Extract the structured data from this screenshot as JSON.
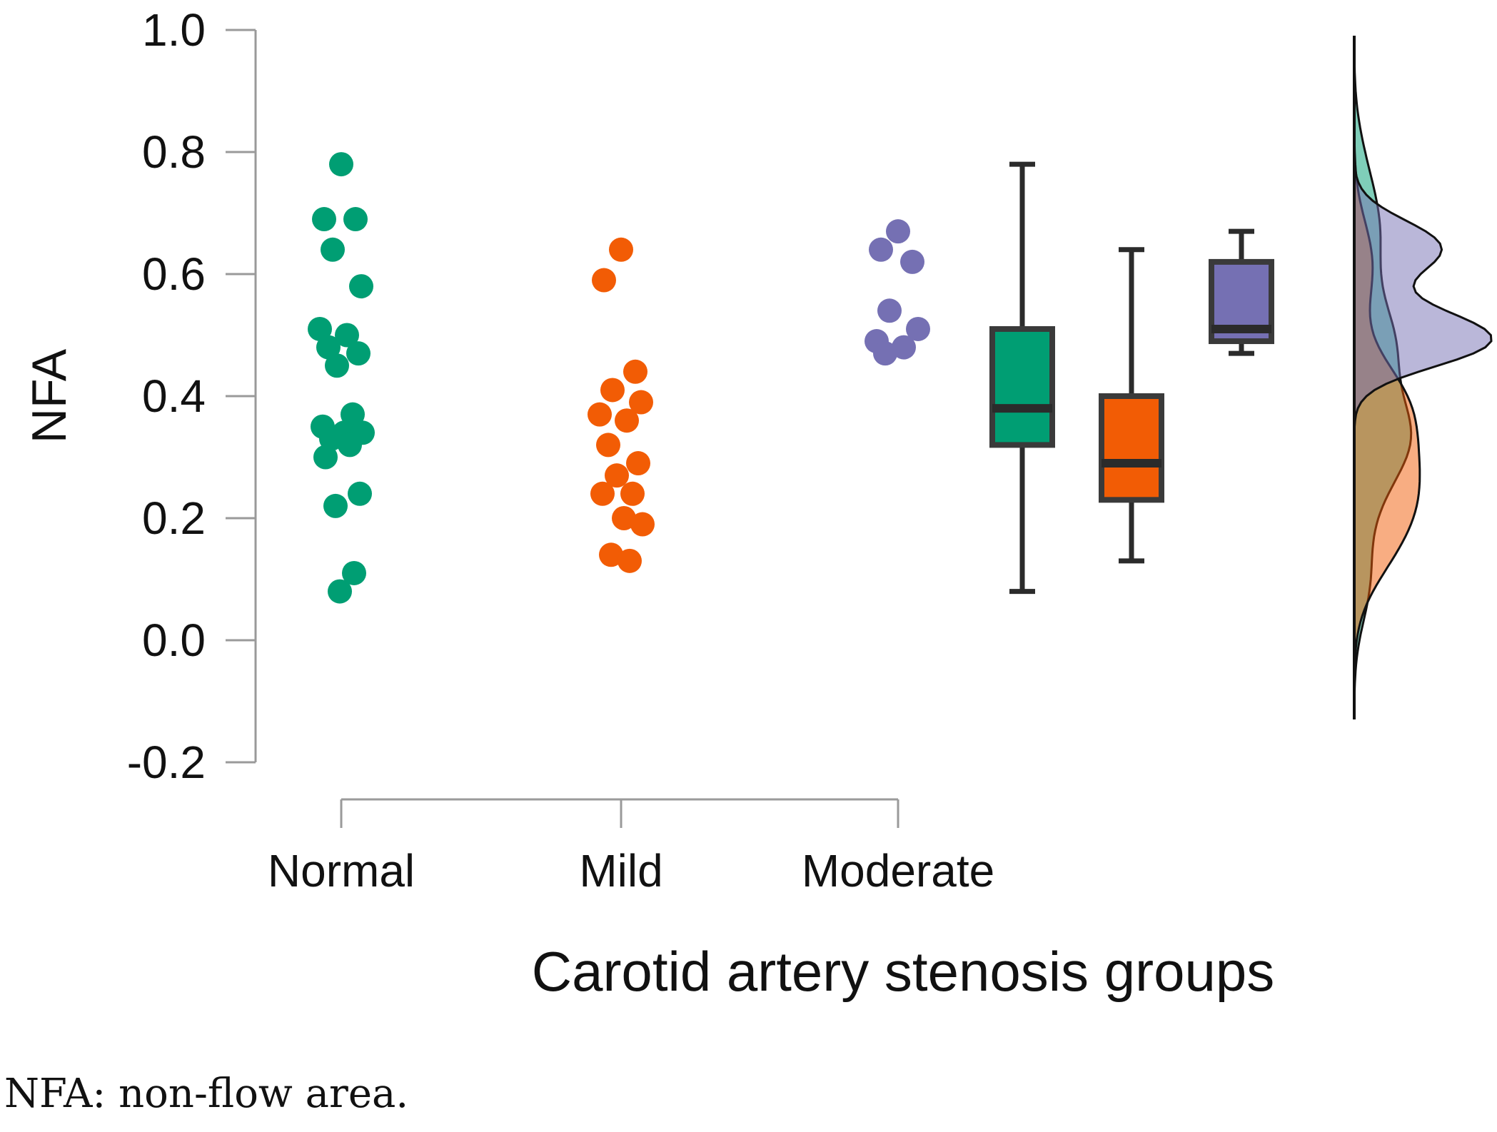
{
  "chart_data": {
    "type": "raincloud",
    "xlabel": "Carotid artery stenosis groups",
    "ylabel": "NFA",
    "ylim": [
      -0.2,
      1.0
    ],
    "yticks": [
      "-0.2",
      "0.0",
      "0.2",
      "0.4",
      "0.6",
      "0.8",
      "1.0"
    ],
    "groups": [
      {
        "name": "Normal",
        "color": "#009e73",
        "points": [
          0.78,
          0.69,
          0.69,
          0.64,
          0.58,
          0.51,
          0.5,
          0.48,
          0.47,
          0.45,
          0.37,
          0.35,
          0.34,
          0.34,
          0.33,
          0.32,
          0.3,
          0.24,
          0.22,
          0.11,
          0.08
        ],
        "box": {
          "min": 0.08,
          "q1": 0.32,
          "median": 0.38,
          "q3": 0.51,
          "max": 0.78
        }
      },
      {
        "name": "Mild",
        "color": "#f25c05",
        "points": [
          0.64,
          0.59,
          0.44,
          0.41,
          0.39,
          0.37,
          0.36,
          0.32,
          0.29,
          0.27,
          0.24,
          0.24,
          0.2,
          0.19,
          0.14,
          0.13
        ],
        "box": {
          "min": 0.13,
          "q1": 0.23,
          "median": 0.29,
          "q3": 0.4,
          "max": 0.64
        }
      },
      {
        "name": "Moderate",
        "color": "#7570b3",
        "points": [
          0.67,
          0.64,
          0.62,
          0.54,
          0.51,
          0.49,
          0.48,
          0.47
        ],
        "box": {
          "min": 0.47,
          "q1": 0.49,
          "median": 0.51,
          "q3": 0.62,
          "max": 0.67
        }
      }
    ]
  },
  "caption": "NFA: non-flow area."
}
